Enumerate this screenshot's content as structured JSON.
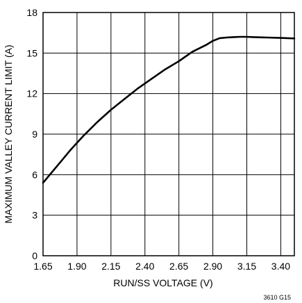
{
  "chart_data": {
    "type": "line",
    "xlabel": "RUN/SS VOLTAGE (V)",
    "ylabel": "MAXIMUM VALLEY CURRENT LIMIT (A)",
    "xlim": [
      1.65,
      3.5
    ],
    "ylim": [
      0,
      18
    ],
    "x_ticks": [
      "1.65",
      "1.90",
      "2.15",
      "2.40",
      "2.65",
      "2.90",
      "3.15",
      "3.40"
    ],
    "y_ticks": [
      "0",
      "3",
      "6",
      "9",
      "12",
      "15",
      "18"
    ],
    "grid": true,
    "series": [
      {
        "x": [
          1.65,
          1.75,
          1.85,
          1.95,
          2.05,
          2.15,
          2.25,
          2.35,
          2.45,
          2.55,
          2.65,
          2.75,
          2.85,
          2.9,
          2.95,
          3.0,
          3.05,
          3.1,
          3.15,
          3.2,
          3.3,
          3.4,
          3.5
        ],
        "y": [
          5.4,
          6.6,
          7.8,
          8.9,
          9.9,
          10.8,
          11.6,
          12.4,
          13.1,
          13.8,
          14.4,
          15.1,
          15.6,
          15.9,
          16.1,
          16.15,
          16.18,
          16.2,
          16.2,
          16.18,
          16.15,
          16.12,
          16.08
        ]
      }
    ]
  },
  "figure_id": "3610 G15"
}
